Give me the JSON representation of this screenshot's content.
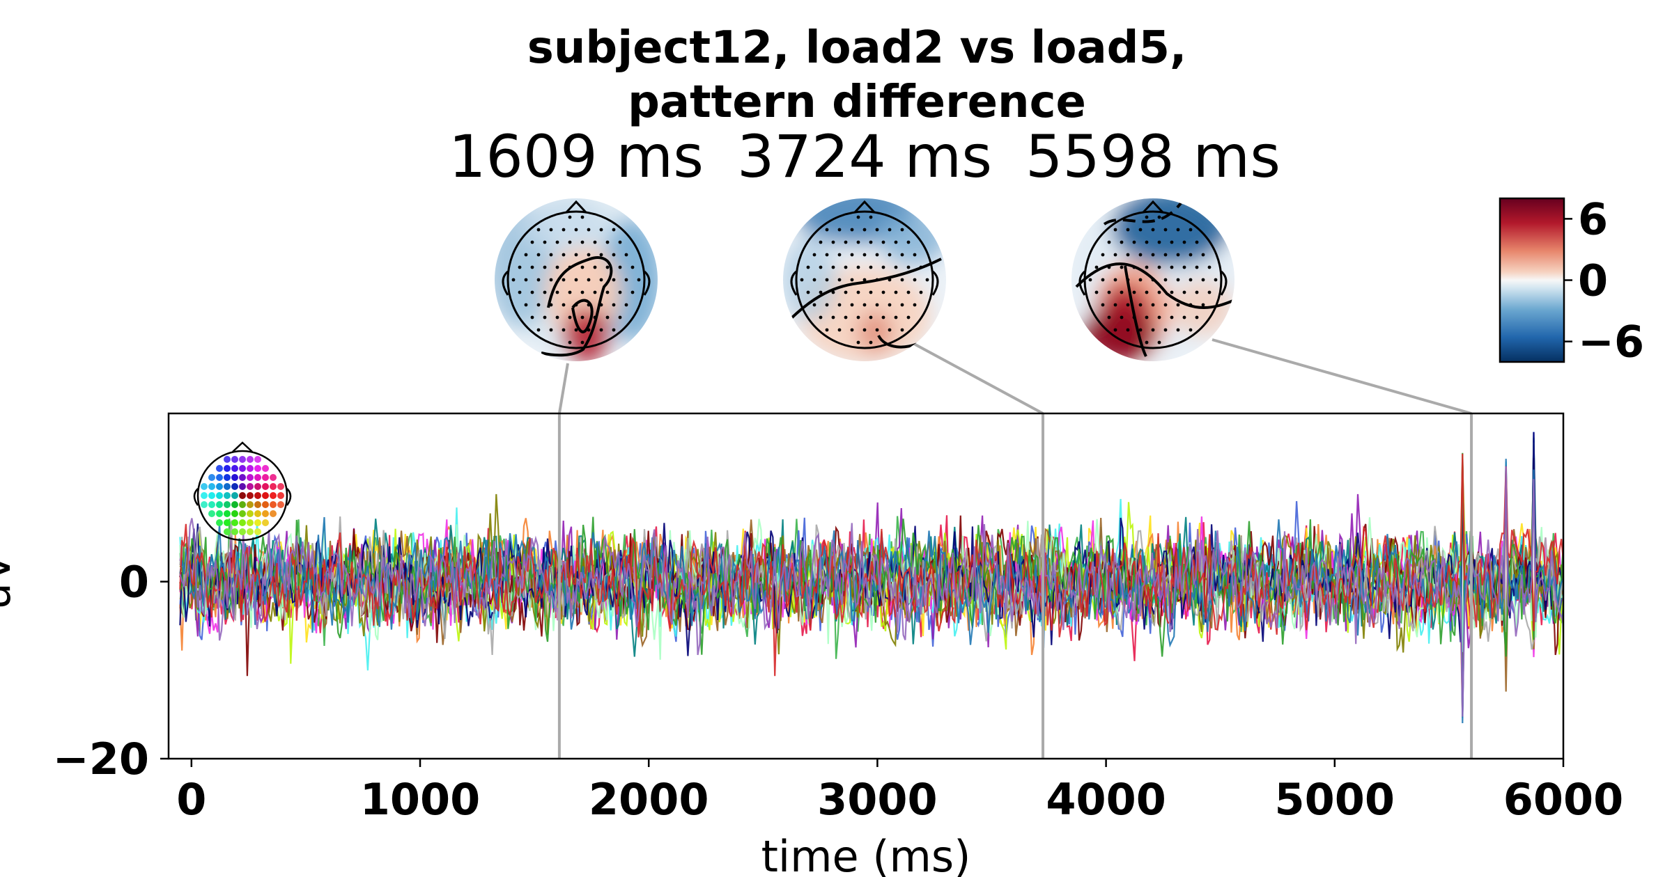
{
  "title": {
    "line1": "subject12, load2 vs load5,",
    "line2": "pattern difference"
  },
  "topomaps": [
    {
      "label": "1609 ms",
      "time": 1609
    },
    {
      "label": "3724 ms",
      "time": 3724
    },
    {
      "label": "5598 ms",
      "time": 5598
    }
  ],
  "colorbar": {
    "colormap": "RdBu_r",
    "range": [
      -8,
      8
    ],
    "ticks": [
      6,
      0,
      -6
    ],
    "tick_labels": [
      "6",
      "0",
      "−6"
    ],
    "colors": {
      "high": "#67001f",
      "mid": "#f7f7f7",
      "low": "#053061"
    }
  },
  "sensor_inset_icon": "sensor-layout-head-icon",
  "chart_data": {
    "type": "line",
    "title": "subject12, load2 vs load5, pattern difference",
    "xlabel": "time (ms)",
    "ylabel": "uV",
    "xlim": [
      -100,
      6000
    ],
    "ylim": [
      -20,
      19
    ],
    "xticks": [
      0,
      1000,
      2000,
      3000,
      4000,
      5000,
      6000
    ],
    "xtick_labels": [
      "0",
      "1000",
      "2000",
      "3000",
      "4000",
      "5000",
      "6000"
    ],
    "yticks": [
      0,
      -20
    ],
    "ytick_labels": [
      "0",
      "−20"
    ],
    "grid": false,
    "marker_times": [
      1609,
      3724,
      5598
    ],
    "line_colors": [
      "#e6194b",
      "#3cb44b",
      "#ffe119",
      "#4363d8",
      "#f58231",
      "#911eb4",
      "#46f0f0",
      "#f032e6",
      "#bcf60c",
      "#008080",
      "#9a6324",
      "#800000",
      "#aaffc3",
      "#808000",
      "#000075",
      "#a9a9a9",
      "#2ca02c",
      "#1f77b4",
      "#d62728",
      "#9467bd"
    ],
    "series_note_count": 20,
    "spikes": [
      {
        "x": 5560,
        "min": -18,
        "max": 15
      },
      {
        "x": 5750,
        "min": -14,
        "max": 14
      },
      {
        "x": 5870,
        "min": -11,
        "max": 17
      }
    ]
  }
}
